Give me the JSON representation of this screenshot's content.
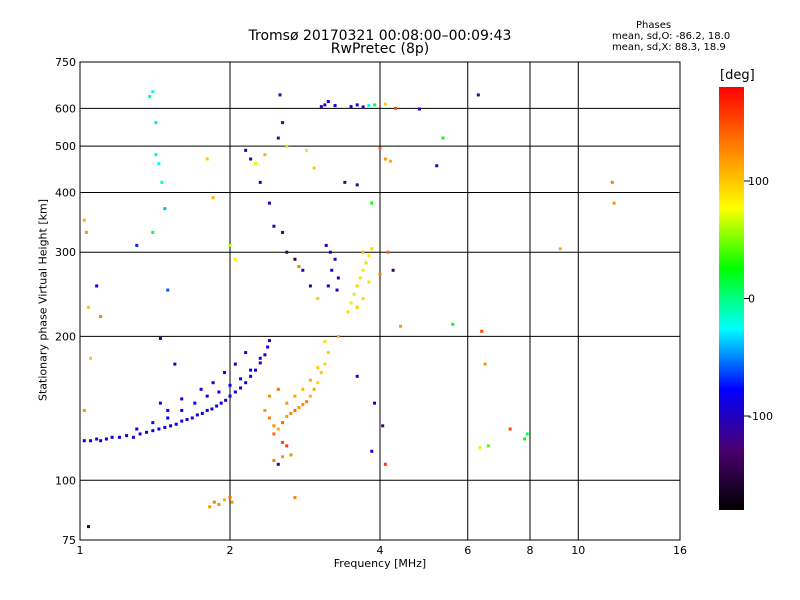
{
  "title_line1": "Tromsø 20170321 00:08:00–00:09:43",
  "title_line2": "RwPretec (8p)",
  "stats": {
    "header": "Phases",
    "line1": "mean, sd,O: -86.2, 18.0",
    "line2": "mean, sd,X: 88.3, 18.9"
  },
  "colorbar": {
    "label": "[deg]",
    "ticks": [
      {
        "value": 100,
        "label": "100"
      },
      {
        "value": 0,
        "label": "0"
      },
      {
        "value": -100,
        "label": "-100"
      }
    ],
    "range": [
      -180,
      180
    ],
    "colormap": [
      "#000000",
      "#4a0070",
      "#0000ff",
      "#00ffff",
      "#00ff00",
      "#ffff00",
      "#ff8000",
      "#ff0000"
    ]
  },
  "chart_data": {
    "type": "scatter",
    "xlabel": "Frequency [MHz]",
    "ylabel": "Stationary phase Virtual Height [km]",
    "xscale": "log",
    "yscale": "log",
    "xlim": [
      1,
      16
    ],
    "ylim": [
      75,
      750
    ],
    "xticks": [
      {
        "value": 1,
        "label": "1"
      },
      {
        "value": 2,
        "label": "2"
      },
      {
        "value": 4,
        "label": "4"
      },
      {
        "value": 6,
        "label": "6"
      },
      {
        "value": 8,
        "label": "8"
      },
      {
        "value": 10,
        "label": "10"
      },
      {
        "value": 16,
        "label": "16"
      }
    ],
    "yticks": [
      {
        "value": 75,
        "label": "75"
      },
      {
        "value": 100,
        "label": "100"
      },
      {
        "value": 200,
        "label": "200"
      },
      {
        "value": 300,
        "label": "300"
      },
      {
        "value": 400,
        "label": "400"
      },
      {
        "value": 500,
        "label": "500"
      },
      {
        "value": 600,
        "label": "600"
      },
      {
        "value": 750,
        "label": "750"
      }
    ],
    "xgrid": [
      1,
      2,
      4,
      6,
      8,
      10,
      16
    ],
    "ygrid": [
      100,
      200,
      300,
      400,
      500,
      600,
      750
    ],
    "grid": true,
    "points": [
      [
        1.02,
        121,
        -80
      ],
      [
        1.05,
        121,
        -85
      ],
      [
        1.08,
        122,
        -90
      ],
      [
        1.1,
        121,
        -95
      ],
      [
        1.13,
        122,
        -90
      ],
      [
        1.16,
        123,
        -85
      ],
      [
        1.2,
        123,
        -88
      ],
      [
        1.24,
        124,
        -92
      ],
      [
        1.28,
        123,
        -95
      ],
      [
        1.32,
        125,
        -90
      ],
      [
        1.36,
        126,
        -88
      ],
      [
        1.4,
        127,
        -92
      ],
      [
        1.44,
        128,
        -85
      ],
      [
        1.48,
        129,
        -90
      ],
      [
        1.52,
        130,
        -95
      ],
      [
        1.56,
        131,
        -88
      ],
      [
        1.6,
        133,
        -90
      ],
      [
        1.64,
        134,
        -92
      ],
      [
        1.68,
        135,
        -86
      ],
      [
        1.72,
        137,
        -90
      ],
      [
        1.76,
        138,
        -94
      ],
      [
        1.8,
        140,
        -88
      ],
      [
        1.84,
        141,
        -90
      ],
      [
        1.88,
        143,
        -92
      ],
      [
        1.92,
        145,
        -85
      ],
      [
        1.96,
        147,
        -90
      ],
      [
        2.0,
        150,
        -92
      ],
      [
        2.05,
        153,
        -88
      ],
      [
        2.1,
        156,
        -90
      ],
      [
        2.15,
        160,
        -95
      ],
      [
        2.2,
        165,
        -88
      ],
      [
        2.25,
        170,
        -90
      ],
      [
        2.3,
        176,
        -92
      ],
      [
        2.35,
        183,
        -86
      ],
      [
        2.38,
        190,
        -90
      ],
      [
        2.4,
        196,
        -93
      ],
      [
        1.3,
        128,
        -80
      ],
      [
        1.4,
        132,
        -82
      ],
      [
        1.5,
        135,
        -78
      ],
      [
        1.6,
        140,
        -84
      ],
      [
        1.7,
        145,
        -80
      ],
      [
        1.8,
        150,
        -86
      ],
      [
        1.9,
        153,
        -82
      ],
      [
        2.0,
        158,
        -88
      ],
      [
        2.1,
        163,
        -84
      ],
      [
        2.2,
        170,
        -80
      ],
      [
        2.3,
        180,
        -90
      ],
      [
        1.5,
        140,
        -88
      ],
      [
        1.6,
        148,
        -92
      ],
      [
        1.75,
        155,
        -90
      ],
      [
        1.85,
        160,
        -94
      ],
      [
        1.95,
        168,
        -88
      ],
      [
        2.05,
        175,
        -92
      ],
      [
        2.15,
        185,
        -96
      ],
      [
        1.45,
        145,
        -100
      ],
      [
        2.35,
        140,
        120
      ],
      [
        2.4,
        135,
        130
      ],
      [
        2.45,
        130,
        125
      ],
      [
        2.5,
        128,
        110
      ],
      [
        2.55,
        132,
        140
      ],
      [
        2.6,
        136,
        115
      ],
      [
        2.65,
        138,
        128
      ],
      [
        2.7,
        140,
        135
      ],
      [
        2.75,
        142,
        118
      ],
      [
        2.8,
        144,
        122
      ],
      [
        2.85,
        146,
        130
      ],
      [
        2.9,
        150,
        108
      ],
      [
        2.95,
        155,
        112
      ],
      [
        3.0,
        160,
        95
      ],
      [
        3.05,
        168,
        100
      ],
      [
        3.1,
        175,
        92
      ],
      [
        3.15,
        185,
        96
      ],
      [
        3.1,
        195,
        90
      ],
      [
        2.4,
        150,
        125
      ],
      [
        2.5,
        155,
        138
      ],
      [
        2.6,
        145,
        120
      ],
      [
        2.7,
        150,
        115
      ],
      [
        2.8,
        155,
        105
      ],
      [
        2.9,
        162,
        110
      ],
      [
        3.0,
        172,
        100
      ],
      [
        2.45,
        125,
        140
      ],
      [
        2.55,
        120,
        150
      ],
      [
        2.6,
        118,
        160
      ],
      [
        3.45,
        225,
        92
      ],
      [
        3.5,
        235,
        88
      ],
      [
        3.55,
        245,
        90
      ],
      [
        3.6,
        255,
        95
      ],
      [
        3.65,
        265,
        90
      ],
      [
        3.7,
        275,
        86
      ],
      [
        3.75,
        285,
        92
      ],
      [
        3.8,
        295,
        88
      ],
      [
        3.85,
        305,
        95
      ],
      [
        3.6,
        230,
        100
      ],
      [
        3.7,
        240,
        92
      ],
      [
        3.8,
        260,
        90
      ],
      [
        3.12,
        310,
        -95
      ],
      [
        3.18,
        300,
        -90
      ],
      [
        3.25,
        290,
        -100
      ],
      [
        3.2,
        275,
        -92
      ],
      [
        3.3,
        265,
        -96
      ],
      [
        3.15,
        255,
        -88
      ],
      [
        3.28,
        250,
        -102
      ],
      [
        3.05,
        605,
        -92
      ],
      [
        3.1,
        610,
        -95
      ],
      [
        3.15,
        620,
        -90
      ],
      [
        3.25,
        608,
        -96
      ],
      [
        3.5,
        605,
        -92
      ],
      [
        3.6,
        610,
        -94
      ],
      [
        3.7,
        604,
        -90
      ],
      [
        3.8,
        608,
        -20
      ],
      [
        3.9,
        610,
        10
      ],
      [
        4.1,
        612,
        95
      ],
      [
        4.3,
        600,
        150
      ],
      [
        4.8,
        598,
        -95
      ],
      [
        1.4,
        650,
        -20
      ],
      [
        1.38,
        635,
        0
      ],
      [
        1.42,
        560,
        -30
      ],
      [
        1.42,
        480,
        -10
      ],
      [
        1.44,
        460,
        -25
      ],
      [
        1.46,
        420,
        -15
      ],
      [
        1.48,
        370,
        -40
      ],
      [
        1.5,
        250,
        -60
      ],
      [
        1.3,
        310,
        -70
      ],
      [
        1.4,
        330,
        10
      ],
      [
        1.45,
        198,
        -95
      ],
      [
        1.55,
        175,
        -90
      ],
      [
        1.02,
        350,
        110
      ],
      [
        1.03,
        330,
        120
      ],
      [
        1.04,
        230,
        100
      ],
      [
        1.08,
        255,
        -80
      ],
      [
        1.1,
        220,
        130
      ],
      [
        1.05,
        180,
        100
      ],
      [
        1.02,
        140,
        120
      ],
      [
        1.04,
        80,
        -150
      ],
      [
        1.82,
        88,
        120
      ],
      [
        1.86,
        90,
        130
      ],
      [
        1.9,
        89,
        125
      ],
      [
        1.95,
        91,
        110
      ],
      [
        2.0,
        92,
        140
      ],
      [
        2.02,
        90,
        118
      ],
      [
        2.45,
        110,
        130
      ],
      [
        2.55,
        112,
        120
      ],
      [
        2.65,
        113,
        125
      ],
      [
        2.5,
        108,
        -110
      ],
      [
        3.4,
        420,
        -130
      ],
      [
        3.6,
        415,
        -120
      ],
      [
        3.7,
        300,
        110
      ],
      [
        3.85,
        380,
        30
      ],
      [
        4.0,
        495,
        140
      ],
      [
        4.1,
        470,
        120
      ],
      [
        4.2,
        465,
        110
      ],
      [
        4.15,
        300,
        140
      ],
      [
        4.25,
        275,
        -140
      ],
      [
        4.0,
        270,
        130
      ],
      [
        4.4,
        210,
        120
      ],
      [
        5.2,
        455,
        -100
      ],
      [
        5.35,
        520,
        20
      ],
      [
        5.6,
        212,
        20
      ],
      [
        6.3,
        640,
        -120
      ],
      [
        6.4,
        205,
        150
      ],
      [
        6.5,
        175,
        120
      ],
      [
        6.6,
        118,
        40
      ],
      [
        6.35,
        117,
        70
      ],
      [
        7.3,
        128,
        150
      ],
      [
        7.8,
        122,
        30
      ],
      [
        7.9,
        125,
        10
      ],
      [
        9.2,
        305,
        110
      ],
      [
        11.7,
        420,
        130
      ],
      [
        11.8,
        380,
        120
      ],
      [
        2.25,
        460,
        70
      ],
      [
        2.3,
        420,
        -90
      ],
      [
        2.35,
        480,
        110
      ],
      [
        2.4,
        380,
        -100
      ],
      [
        2.45,
        340,
        -100
      ],
      [
        2.5,
        520,
        -120
      ],
      [
        2.52,
        640,
        -110
      ],
      [
        2.55,
        560,
        -125
      ],
      [
        2.6,
        500,
        60
      ],
      [
        2.55,
        330,
        -130
      ],
      [
        2.6,
        300,
        -140
      ],
      [
        2.7,
        290,
        -150
      ],
      [
        2.75,
        280,
        130
      ],
      [
        2.8,
        275,
        -100
      ],
      [
        2.9,
        255,
        -110
      ],
      [
        3.0,
        240,
        100
      ],
      [
        3.3,
        200,
        110
      ],
      [
        3.6,
        165,
        -90
      ],
      [
        3.9,
        145,
        -80
      ],
      [
        4.05,
        130,
        -130
      ],
      [
        3.85,
        115,
        -90
      ],
      [
        4.1,
        108,
        160
      ],
      [
        2.0,
        310,
        60
      ],
      [
        2.05,
        290,
        80
      ],
      [
        2.15,
        490,
        -110
      ],
      [
        2.2,
        470,
        -120
      ],
      [
        1.8,
        470,
        100
      ],
      [
        1.85,
        390,
        110
      ],
      [
        2.7,
        92,
        130
      ],
      [
        2.85,
        490,
        90
      ],
      [
        2.95,
        450,
        100
      ]
    ]
  }
}
